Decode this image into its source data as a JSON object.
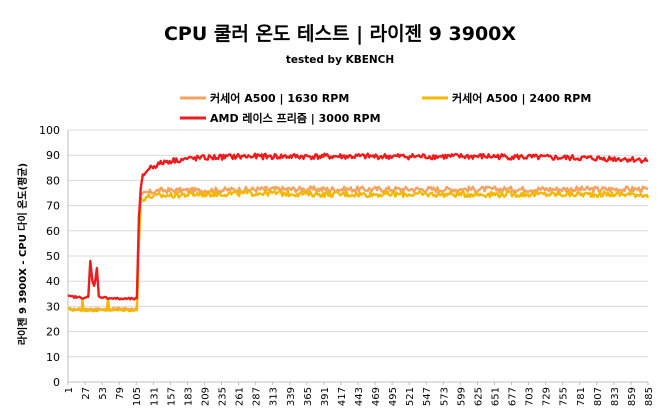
{
  "chart_data": {
    "type": "line",
    "title": "CPU 쿨러 온도 테스트 | 라이젠 9 3900X",
    "subtitle": "tested by KBENCH",
    "xlabel": "",
    "ylabel": "라이젠 9 3900X - CPU 다이 온도(평균)",
    "ylim": [
      0,
      100
    ],
    "yticks": [
      0,
      10,
      20,
      30,
      40,
      50,
      60,
      70,
      80,
      90,
      100
    ],
    "xlim": [
      1,
      885
    ],
    "xticks": [
      1,
      27,
      53,
      79,
      105,
      131,
      157,
      183,
      209,
      235,
      261,
      287,
      313,
      339,
      365,
      391,
      417,
      443,
      469,
      495,
      521,
      547,
      573,
      599,
      625,
      651,
      677,
      703,
      729,
      755,
      781,
      807,
      833,
      859,
      885
    ],
    "grid": "horizontal",
    "legend_placement": "top",
    "series": [
      {
        "name": "커세어 A500  | 1630 RPM",
        "color": "#F4A460",
        "points": [
          [
            1,
            29
          ],
          [
            12,
            28.8
          ],
          [
            20,
            29.2
          ],
          [
            30,
            29
          ],
          [
            40,
            29
          ],
          [
            60,
            28.8
          ],
          [
            80,
            29.2
          ],
          [
            100,
            29
          ],
          [
            106,
            29
          ],
          [
            109,
            60
          ],
          [
            112,
            74
          ],
          [
            120,
            75
          ],
          [
            140,
            76
          ],
          [
            200,
            76
          ],
          [
            300,
            76.5
          ],
          [
            400,
            76.5
          ],
          [
            500,
            76.5
          ],
          [
            600,
            76.5
          ],
          [
            700,
            76.5
          ],
          [
            800,
            76.5
          ],
          [
            885,
            76.5
          ]
        ]
      },
      {
        "name": "커세어 A500  | 2400 RPM",
        "color": "#F5B800",
        "points": [
          [
            1,
            29
          ],
          [
            10,
            28.5
          ],
          [
            22,
            28.5
          ],
          [
            23,
            33
          ],
          [
            25,
            28.5
          ],
          [
            60,
            28.5
          ],
          [
            62,
            33
          ],
          [
            64,
            28.5
          ],
          [
            106,
            28.5
          ],
          [
            109,
            55
          ],
          [
            112,
            72
          ],
          [
            120,
            73.5
          ],
          [
            150,
            74
          ],
          [
            200,
            74.5
          ],
          [
            300,
            75
          ],
          [
            400,
            74.5
          ],
          [
            500,
            74.5
          ],
          [
            600,
            74.5
          ],
          [
            700,
            74.5
          ],
          [
            800,
            74.5
          ],
          [
            880,
            74.5
          ],
          [
            885,
            73
          ]
        ]
      },
      {
        "name": "AMD 레이스 프리즘 | 3000 RPM",
        "color": "#EE1C1C",
        "points": [
          [
            1,
            34
          ],
          [
            20,
            33.5
          ],
          [
            32,
            33.5
          ],
          [
            35,
            48
          ],
          [
            38,
            40
          ],
          [
            41,
            38
          ],
          [
            45,
            45
          ],
          [
            48,
            34
          ],
          [
            55,
            33.5
          ],
          [
            80,
            33
          ],
          [
            106,
            33
          ],
          [
            109,
            65
          ],
          [
            112,
            77
          ],
          [
            115,
            82
          ],
          [
            125,
            85
          ],
          [
            150,
            87.5
          ],
          [
            180,
            88.5
          ],
          [
            210,
            89
          ],
          [
            260,
            89.5
          ],
          [
            350,
            89.5
          ],
          [
            450,
            89.5
          ],
          [
            550,
            89.5
          ],
          [
            650,
            89.5
          ],
          [
            750,
            89
          ],
          [
            850,
            88.5
          ],
          [
            885,
            88
          ]
        ]
      }
    ]
  }
}
